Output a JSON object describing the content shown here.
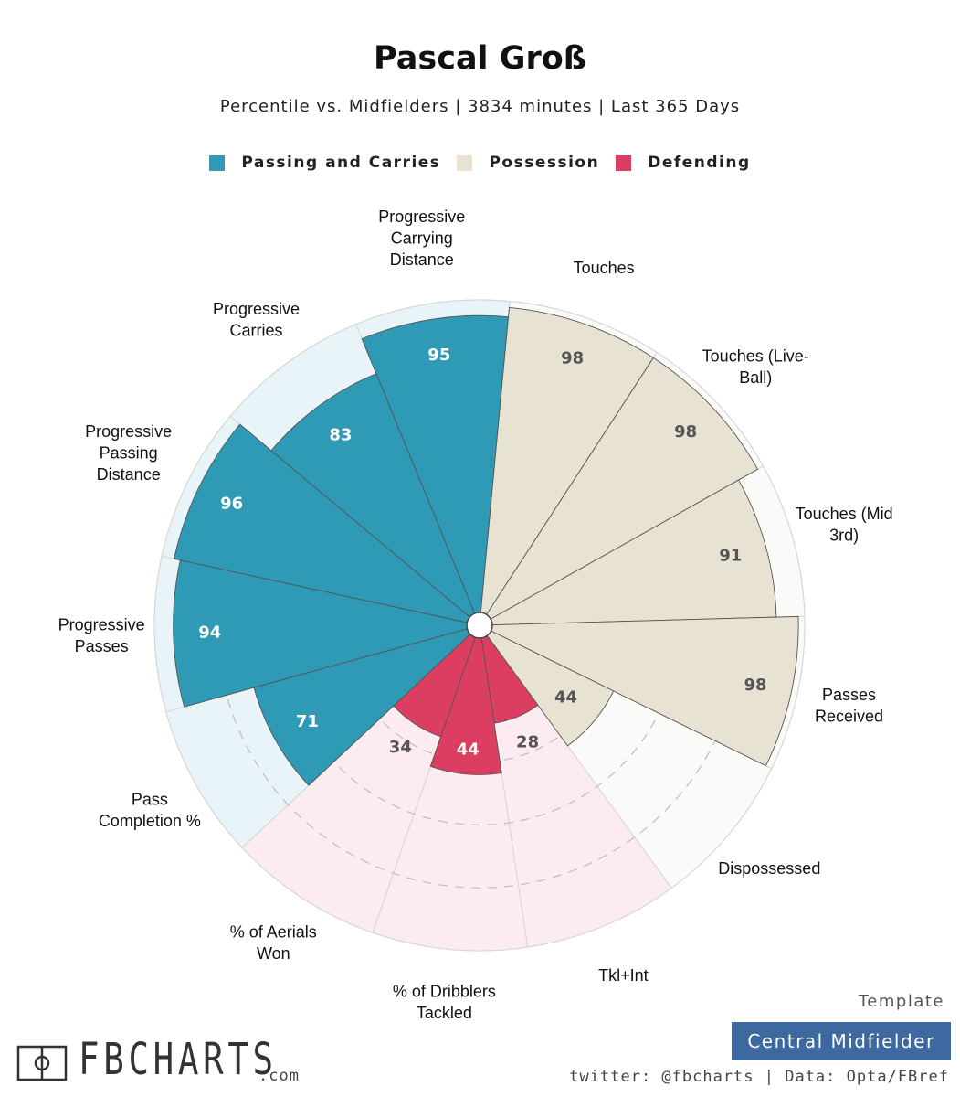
{
  "header": {
    "title": "Pascal Groß",
    "subtitle": "Percentile vs. Midfielders | 3834 minutes | Last 365 Days"
  },
  "legend": [
    {
      "label": "Passing and Carries",
      "color": "#2e9ab5"
    },
    {
      "label": "Possession",
      "color": "#e7e2d1"
    },
    {
      "label": "Defending",
      "color": "#dc3e62"
    }
  ],
  "chart_data": {
    "type": "radar-bar",
    "title": "Pascal Groß",
    "subtitle": "Percentile vs. Midfielders | 3834 minutes | Last 365 Days",
    "range": [
      0,
      100
    ],
    "categories": [
      {
        "label": "Progressive Carrying Distance",
        "value": 95,
        "group": "Passing and Carries"
      },
      {
        "label": "Touches",
        "value": 98,
        "group": "Possession"
      },
      {
        "label": "Touches (Live-Ball)",
        "value": 98,
        "group": "Possession"
      },
      {
        "label": "Touches (Mid 3rd)",
        "value": 91,
        "group": "Possession"
      },
      {
        "label": "Passes Received",
        "value": 98,
        "group": "Possession"
      },
      {
        "label": "Dispossessed",
        "value": 44,
        "group": "Possession"
      },
      {
        "label": "Tkl+Int",
        "value": 28,
        "group": "Defending"
      },
      {
        "label": "% of Dribblers Tackled",
        "value": 44,
        "group": "Defending"
      },
      {
        "label": "% of Aerials Won",
        "value": 34,
        "group": "Defending"
      },
      {
        "label": "Pass Completion %",
        "value": 71,
        "group": "Passing and Carries"
      },
      {
        "label": "Progressive Passes",
        "value": 94,
        "group": "Passing and Carries"
      },
      {
        "label": "Progressive Passing Distance",
        "value": 96,
        "group": "Passing and Carries"
      },
      {
        "label": "Progressive Carries",
        "value": 83,
        "group": "Passing and Carries"
      }
    ],
    "label_lines": [
      [
        "Progressive",
        "Carrying",
        "Distance"
      ],
      [
        "Touches"
      ],
      [
        "Touches (Live-",
        "Ball)"
      ],
      [
        "Touches (Mid",
        "3rd)"
      ],
      [
        "Passes",
        "Received"
      ],
      [
        "Dispossessed"
      ],
      [
        "Tkl+Int"
      ],
      [
        "% of Dribblers",
        "Tackled"
      ],
      [
        "% of Aerials",
        "Won"
      ],
      [
        "Pass",
        "Completion %"
      ],
      [
        "Progressive",
        "Passes"
      ],
      [
        "Progressive",
        "Passing",
        "Distance"
      ],
      [
        "Progressive",
        "Carries"
      ]
    ],
    "group_colors": {
      "Passing and Carries": {
        "bar": "#2e9ab5",
        "bg": "#e8f4f7",
        "text": "#ffffff"
      },
      "Possession": {
        "bar": "#e7e2d1",
        "bg": "#fafaf8",
        "text": "#555555"
      },
      "Defending": {
        "bar": "#dc3e62",
        "bg": "#fcebf0",
        "text": "#ffffff"
      }
    },
    "low_value_text_color": "#555555",
    "low_value_threshold": 40
  },
  "footer": {
    "template_label": "Template",
    "template_value": "Central Midfielder",
    "credits": "twitter: @fbcharts | Data: Opta/FBref",
    "logo_text": "FBCHARTS",
    "logo_suffix": ".com"
  }
}
